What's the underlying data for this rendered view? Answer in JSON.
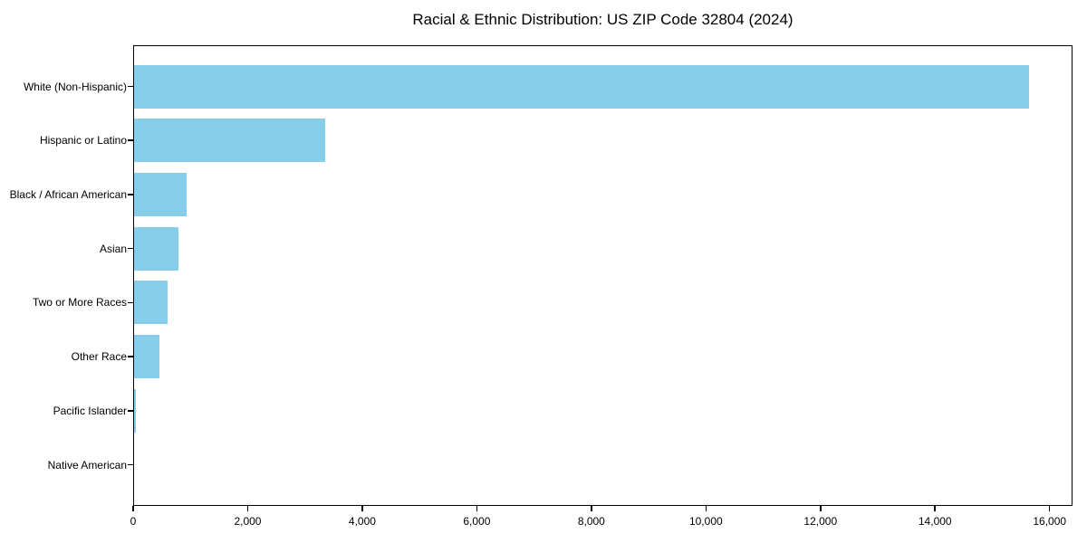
{
  "title": "Racial & Ethnic Distribution: US ZIP Code 32804 (2024)",
  "chart_data": {
    "type": "bar",
    "orientation": "horizontal",
    "title": "Racial & Ethnic Distribution: US ZIP Code 32804 (2024)",
    "categories": [
      "White (Non-Hispanic)",
      "Hispanic or Latino",
      "Black / African American",
      "Asian",
      "Two or More Races",
      "Other Race",
      "Pacific Islander",
      "Native American"
    ],
    "values": [
      15645,
      3345,
      935,
      790,
      595,
      460,
      45,
      10
    ],
    "xlabel": "",
    "ylabel": "",
    "xlim": [
      0,
      16400
    ],
    "x_ticks": [
      0,
      2000,
      4000,
      6000,
      8000,
      10000,
      12000,
      14000,
      16000
    ],
    "x_tick_labels": [
      "0",
      "2,000",
      "4,000",
      "6,000",
      "8,000",
      "10,000",
      "12,000",
      "14,000",
      "16,000"
    ],
    "bar_color": "#87CEEB",
    "grid": false,
    "legend": null
  },
  "colors": {
    "bar": "#87CEEB",
    "axis": "#000000",
    "text": "#000000",
    "background": "#FFFFFF"
  }
}
